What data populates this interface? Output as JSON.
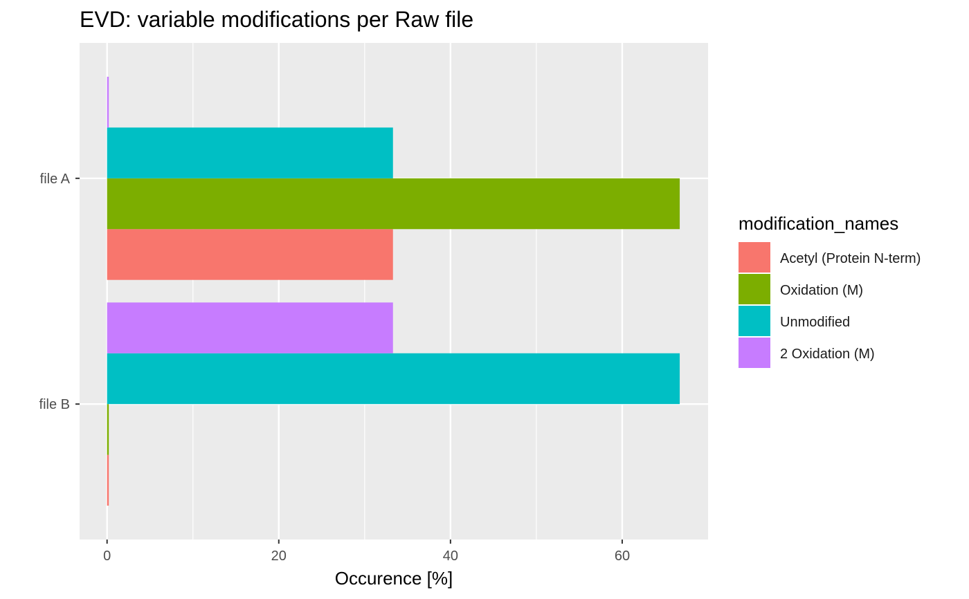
{
  "chart_data": {
    "type": "bar",
    "orientation": "horizontal",
    "title": "EVD: variable modifications per Raw file",
    "xlabel": "Occurence [%]",
    "ylabel": "",
    "xlim": [
      -3.2,
      70
    ],
    "x_ticks": [
      0,
      20,
      40,
      60
    ],
    "x_tick_labels": [
      "0",
      "20",
      "40",
      "60"
    ],
    "categories": [
      "file A",
      "file B"
    ],
    "background": "#ebebeb",
    "grid": true,
    "legend": {
      "title": "modification_names",
      "placement": "right"
    },
    "series": [
      {
        "name": "Acetyl (Protein N-term)",
        "color": "#f8766d",
        "values": [
          33.3,
          0.2
        ]
      },
      {
        "name": "Oxidation (M)",
        "color": "#7cae00",
        "values": [
          66.7,
          0.2
        ]
      },
      {
        "name": "Unmodified",
        "color": "#00bfc4",
        "values": [
          33.3,
          66.7
        ]
      },
      {
        "name": "2 Oxidation (M)",
        "color": "#c77cff",
        "values": [
          0.2,
          33.3
        ]
      }
    ]
  }
}
